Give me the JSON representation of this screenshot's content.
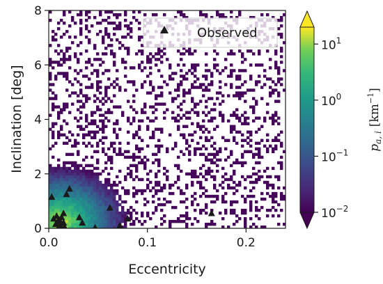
{
  "chart_data": {
    "type": "heatmap",
    "title": "",
    "xlabel": "Eccentricity",
    "ylabel": "Inclination [deg]",
    "xlim": [
      0.0,
      0.24
    ],
    "ylim": [
      0,
      8
    ],
    "xticks": [
      0.0,
      0.1,
      0.2
    ],
    "xtick_labels": [
      "0.0",
      "0.1",
      "0.2"
    ],
    "yticks": [
      0,
      2,
      4,
      6,
      8
    ],
    "ytick_labels": [
      "0",
      "2",
      "4",
      "6",
      "8"
    ],
    "grid": false,
    "heatmap": {
      "colormap": "viridis",
      "scale": "log",
      "peak_density": 20,
      "peak_location": {
        "e": 0.012,
        "i": 0.25
      },
      "extend": "both"
    },
    "colorbar": {
      "label": "p_{a,i} [km^{-1}]",
      "label_main": "p",
      "label_sub": "a, i",
      "label_units": "[km",
      "label_units_exp": "−1",
      "label_units_close": "]",
      "range": [
        0.01,
        20
      ],
      "ticks": [
        0.01,
        0.1,
        1,
        10
      ],
      "tick_bases": [
        "10",
        "10",
        "10",
        "10"
      ],
      "tick_exponents": [
        "−2",
        "−1",
        "0",
        "1"
      ]
    },
    "legend": {
      "position": "top-right",
      "entries": [
        "Observed"
      ]
    },
    "series": [
      {
        "name": "Observed",
        "marker": "triangle",
        "color": "#1a1a1a",
        "points": [
          {
            "x": 0.003,
            "y": 1.15
          },
          {
            "x": 0.005,
            "y": 0.35
          },
          {
            "x": 0.007,
            "y": 0.15
          },
          {
            "x": 0.008,
            "y": 0.45
          },
          {
            "x": 0.009,
            "y": 0.25
          },
          {
            "x": 0.01,
            "y": 0.05
          },
          {
            "x": 0.011,
            "y": 0.3
          },
          {
            "x": 0.012,
            "y": 0.1
          },
          {
            "x": 0.013,
            "y": 0.4
          },
          {
            "x": 0.015,
            "y": 0.55
          },
          {
            "x": 0.015,
            "y": 0.2
          },
          {
            "x": 0.016,
            "y": 0.05
          },
          {
            "x": 0.018,
            "y": 1.25
          },
          {
            "x": 0.021,
            "y": 1.45
          },
          {
            "x": 0.031,
            "y": 0.4
          },
          {
            "x": 0.034,
            "y": 0.2
          },
          {
            "x": 0.047,
            "y": 0.02
          },
          {
            "x": 0.062,
            "y": 0.75
          },
          {
            "x": 0.072,
            "y": 0.1
          },
          {
            "x": 0.08,
            "y": 0.35
          },
          {
            "x": 0.165,
            "y": 0.55
          }
        ]
      }
    ]
  }
}
